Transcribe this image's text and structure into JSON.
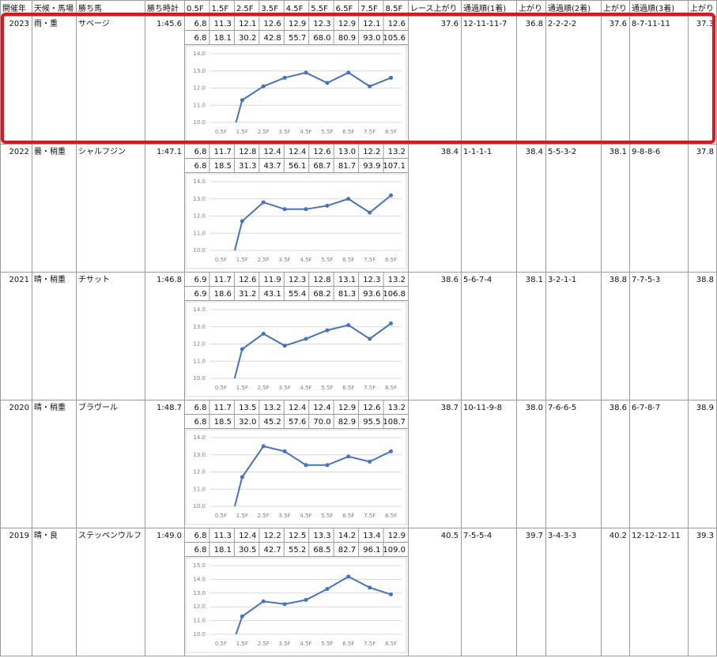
{
  "header": [
    "開催年",
    "天候・馬場",
    "勝ち馬",
    "勝ち時計",
    "0.5F",
    "1.5F",
    "2.5F",
    "3.5F",
    "4.5F",
    "5.5F",
    "6.5F",
    "7.5F",
    "8.5F",
    "レース上がり",
    "通過順(1着)",
    "上がり",
    "通過順(2着)",
    "上がり",
    "通過順(3着)",
    "上がり"
  ],
  "races": [
    {
      "year": "2023",
      "condition": "雨・重",
      "winner": "サベージ",
      "time": "1:45.6",
      "laps": [
        "6.8",
        "11.3",
        "12.1",
        "12.6",
        "12.9",
        "12.3",
        "12.9",
        "12.1",
        "12.6"
      ],
      "cumulative": [
        "6.8",
        "18.1",
        "30.2",
        "42.8",
        "55.7",
        "68.0",
        "80.9",
        "93.0",
        "105.6"
      ],
      "race_last": "37.6",
      "first": {
        "passing": "12-11-11-7",
        "last": "36.8"
      },
      "second": {
        "passing": "2-2-2-2",
        "last": "37.6"
      },
      "third": {
        "passing": "8-7-11-11",
        "last": "37.3"
      },
      "chart": {
        "type": "line",
        "color": "#4472c4",
        "categories": [
          "0.5F",
          "1.5F",
          "2.5F",
          "3.5F",
          "4.5F",
          "5.5F",
          "6.5F",
          "7.5F",
          "8.5F"
        ],
        "ylim": [
          10,
          14
        ],
        "yticks": [
          {
            "value": 10,
            "label": "10.0"
          },
          {
            "value": 11,
            "label": "11.0"
          },
          {
            "value": 12,
            "label": "12.0"
          },
          {
            "value": 13,
            "label": "13.0"
          },
          {
            "value": 14,
            "label": "14.0"
          }
        ]
      }
    },
    {
      "year": "2022",
      "condition": "曇・稍重",
      "winner": "シャルフジン",
      "time": "1:47.1",
      "laps": [
        "6.8",
        "11.7",
        "12.8",
        "12.4",
        "12.4",
        "12.6",
        "13.0",
        "12.2",
        "13.2"
      ],
      "cumulative": [
        "6.8",
        "18.5",
        "31.3",
        "43.7",
        "56.1",
        "68.7",
        "81.7",
        "93.9",
        "107.1"
      ],
      "race_last": "38.4",
      "first": {
        "passing": "1-1-1-1",
        "last": "38.4"
      },
      "second": {
        "passing": "5-5-3-2",
        "last": "38.1"
      },
      "third": {
        "passing": "9-8-8-6",
        "last": "37.8"
      },
      "chart": {
        "type": "line",
        "color": "#4472c4",
        "categories": [
          "0.5F",
          "1.5F",
          "2.5F",
          "3.5F",
          "4.5F",
          "5.5F",
          "6.5F",
          "7.5F",
          "8.5F"
        ],
        "ylim": [
          10,
          14
        ],
        "yticks": [
          {
            "value": 10,
            "label": "10.0"
          },
          {
            "value": 11,
            "label": "11.0"
          },
          {
            "value": 12,
            "label": "12.0"
          },
          {
            "value": 13,
            "label": "13.0"
          },
          {
            "value": 14,
            "label": "14.0"
          }
        ]
      }
    },
    {
      "year": "2021",
      "condition": "晴・稍重",
      "winner": "チサット",
      "time": "1:46.8",
      "laps": [
        "6.9",
        "11.7",
        "12.6",
        "11.9",
        "12.3",
        "12.8",
        "13.1",
        "12.3",
        "13.2"
      ],
      "cumulative": [
        "6.9",
        "18.6",
        "31.2",
        "43.1",
        "55.4",
        "68.2",
        "81.3",
        "93.6",
        "106.8"
      ],
      "race_last": "38.6",
      "first": {
        "passing": "5-6-7-4",
        "last": "38.1"
      },
      "second": {
        "passing": "3-2-1-1",
        "last": "38.8"
      },
      "third": {
        "passing": "7-7-5-3",
        "last": "38.8"
      },
      "chart": {
        "type": "line",
        "color": "#4472c4",
        "categories": [
          "0.5F",
          "1.5F",
          "2.5F",
          "3.5F",
          "4.5F",
          "5.5F",
          "6.5F",
          "7.5F",
          "8.5F"
        ],
        "ylim": [
          10,
          14
        ],
        "yticks": [
          {
            "value": 10,
            "label": "10.0"
          },
          {
            "value": 11,
            "label": "11.0"
          },
          {
            "value": 12,
            "label": "12.0"
          },
          {
            "value": 13,
            "label": "13.0"
          },
          {
            "value": 14,
            "label": "14.0"
          }
        ]
      }
    },
    {
      "year": "2020",
      "condition": "晴・稍重",
      "winner": "ブラヴール",
      "time": "1:48.7",
      "laps": [
        "6.8",
        "11.7",
        "13.5",
        "13.2",
        "12.4",
        "12.4",
        "12.9",
        "12.6",
        "13.2"
      ],
      "cumulative": [
        "6.8",
        "18.5",
        "32.0",
        "45.2",
        "57.6",
        "70.0",
        "82.9",
        "95.5",
        "108.7"
      ],
      "race_last": "38.7",
      "first": {
        "passing": "10-11-9-8",
        "last": "38.0"
      },
      "second": {
        "passing": "7-6-6-5",
        "last": "38.6"
      },
      "third": {
        "passing": "6-7-8-7",
        "last": "38.9"
      },
      "chart": {
        "type": "line",
        "color": "#4472c4",
        "categories": [
          "0.5F",
          "1.5F",
          "2.5F",
          "3.5F",
          "4.5F",
          "5.5F",
          "6.5F",
          "7.5F",
          "8.5F"
        ],
        "ylim": [
          10,
          14
        ],
        "yticks": [
          {
            "value": 10,
            "label": "10.0"
          },
          {
            "value": 11,
            "label": "11.0"
          },
          {
            "value": 12,
            "label": "12.0"
          },
          {
            "value": 13,
            "label": "13.0"
          },
          {
            "value": 14,
            "label": "14.0"
          }
        ]
      }
    },
    {
      "year": "2019",
      "condition": "晴・良",
      "winner": "ステッペンウルフ",
      "time": "1:49.0",
      "laps": [
        "6.8",
        "11.3",
        "12.4",
        "12.2",
        "12.5",
        "13.3",
        "14.2",
        "13.4",
        "12.9"
      ],
      "cumulative": [
        "6.8",
        "18.1",
        "30.5",
        "42.7",
        "55.2",
        "68.5",
        "82.7",
        "96.1",
        "109.0"
      ],
      "race_last": "40.5",
      "first": {
        "passing": "7-5-5-4",
        "last": "39.7"
      },
      "second": {
        "passing": "3-4-3-3",
        "last": "40.2"
      },
      "third": {
        "passing": "12-12-12-11",
        "last": "39.3"
      },
      "chart": {
        "type": "line",
        "color": "#4472c4",
        "categories": [
          "0.5F",
          "1.5F",
          "2.5F",
          "3.5F",
          "4.5F",
          "5.5F",
          "6.5F",
          "7.5F",
          "8.5F"
        ],
        "ylim": [
          10,
          15
        ],
        "yticks": [
          {
            "value": 10,
            "label": "10.0"
          },
          {
            "value": 11,
            "label": "11.0"
          },
          {
            "value": 12,
            "label": "12.0"
          },
          {
            "value": 13,
            "label": "13.0"
          },
          {
            "value": 14,
            "label": "14.0"
          },
          {
            "value": 15,
            "label": "15.0"
          }
        ]
      }
    }
  ]
}
